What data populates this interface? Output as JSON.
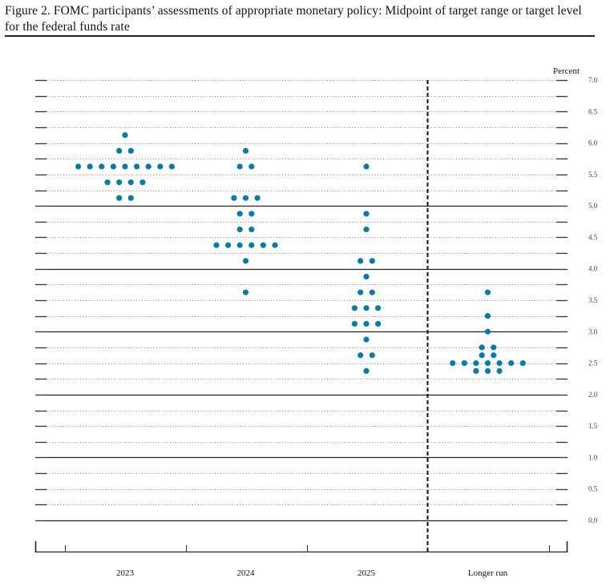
{
  "figure": {
    "title": "Figure 2.  FOMC participants’ assessments of appropriate monetary policy: Midpoint of target range or target level for the federal funds rate"
  },
  "chart_data": {
    "type": "scatter",
    "subtype": "dot_plot",
    "title": "FOMC participants’ assessments of appropriate monetary policy: Midpoint of target range or target level for the federal funds rate",
    "xlabel": "",
    "ylabel": "Percent",
    "ylim": [
      0.0,
      7.0
    ],
    "y_ticks": [
      "7.0",
      "6.5",
      "6.0",
      "5.5",
      "5.0",
      "4.5",
      "4.0",
      "3.5",
      "3.0",
      "2.5",
      "2.0",
      "1.5",
      "1.0",
      "0.5",
      "0.0"
    ],
    "grid": "dotted every 0.25, solid at integers 0-5 except 6 and 7",
    "categories": [
      "2023",
      "2024",
      "2025",
      "Longer run"
    ],
    "dot_color": "#0a7aad",
    "series": [
      {
        "name": "2023",
        "counts": [
          {
            "value": 6.125,
            "count": 1
          },
          {
            "value": 5.875,
            "count": 2
          },
          {
            "value": 5.625,
            "count": 9
          },
          {
            "value": 5.375,
            "count": 4
          },
          {
            "value": 5.125,
            "count": 2
          }
        ]
      },
      {
        "name": "2024",
        "counts": [
          {
            "value": 5.875,
            "count": 1
          },
          {
            "value": 5.625,
            "count": 2
          },
          {
            "value": 5.125,
            "count": 3
          },
          {
            "value": 4.875,
            "count": 2
          },
          {
            "value": 4.625,
            "count": 2
          },
          {
            "value": 4.375,
            "count": 6
          },
          {
            "value": 4.125,
            "count": 1
          },
          {
            "value": 3.625,
            "count": 1
          }
        ]
      },
      {
        "name": "2025",
        "counts": [
          {
            "value": 5.625,
            "count": 1
          },
          {
            "value": 4.875,
            "count": 1
          },
          {
            "value": 4.625,
            "count": 1
          },
          {
            "value": 4.125,
            "count": 2
          },
          {
            "value": 3.875,
            "count": 1
          },
          {
            "value": 3.625,
            "count": 2
          },
          {
            "value": 3.375,
            "count": 3
          },
          {
            "value": 3.125,
            "count": 3
          },
          {
            "value": 2.875,
            "count": 1
          },
          {
            "value": 2.625,
            "count": 2
          },
          {
            "value": 2.375,
            "count": 1
          }
        ]
      },
      {
        "name": "Longer run",
        "counts": [
          {
            "value": 3.625,
            "count": 1
          },
          {
            "value": 3.25,
            "count": 1
          },
          {
            "value": 3.0,
            "count": 1
          },
          {
            "value": 2.75,
            "count": 2
          },
          {
            "value": 2.625,
            "count": 2
          },
          {
            "value": 2.5,
            "count": 7
          },
          {
            "value": 2.375,
            "count": 3
          }
        ]
      }
    ],
    "annotations": [
      "Dashed vertical line separates 2025 from Longer run"
    ]
  },
  "axis": {
    "unit_label": "Percent"
  }
}
